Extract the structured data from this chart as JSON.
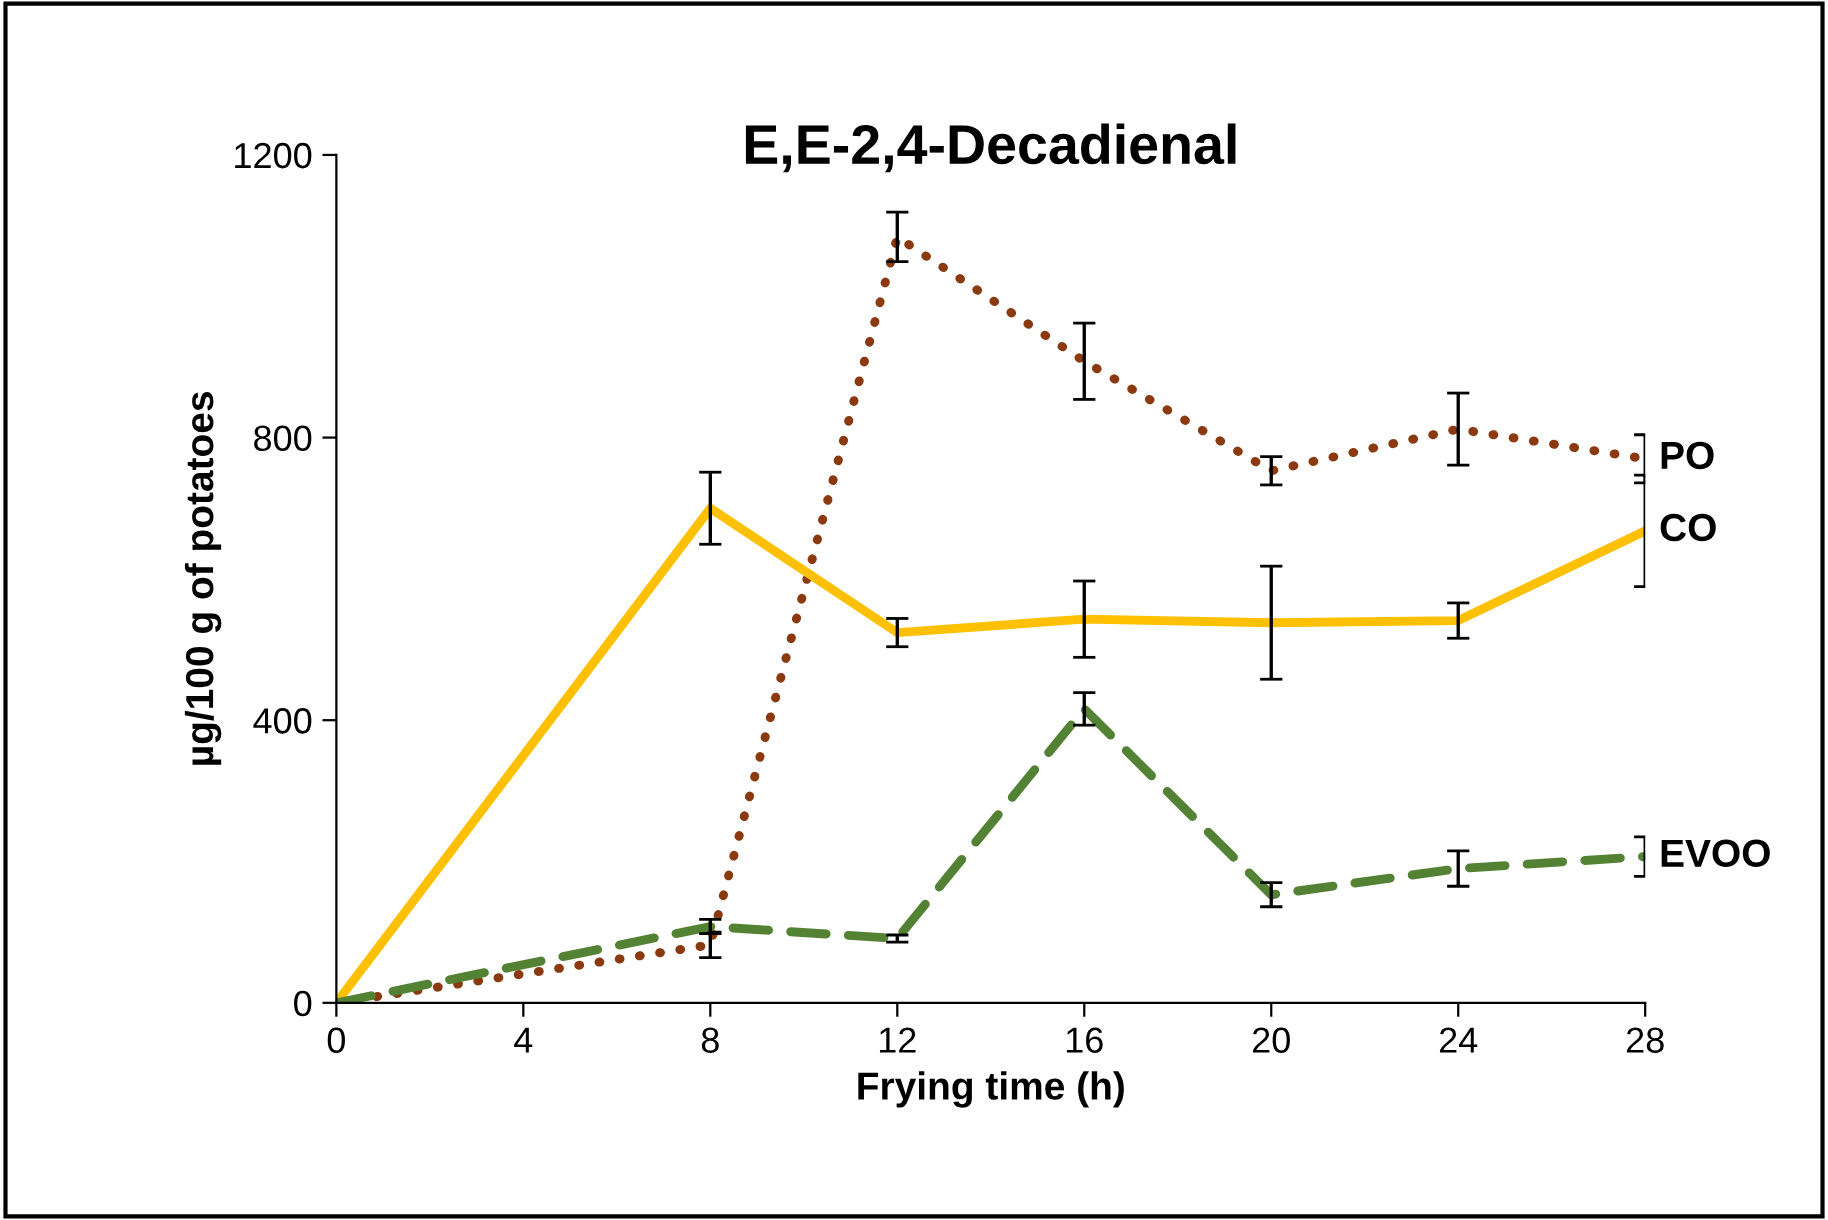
{
  "chart_data": {
    "type": "line",
    "title": "E,E-2,4-Decadienal",
    "xlabel": "Frying time (h)",
    "ylabel": "µg/100 g of potatoes",
    "x": [
      0,
      8,
      12,
      16,
      20,
      24,
      28
    ],
    "series": [
      {
        "name": "PO",
        "color": "#8b3a0f",
        "line_style": "dotted",
        "values": [
          0,
          82,
          1084,
          908,
          753,
          812,
          770
        ],
        "errors": [
          null,
          18,
          35,
          54,
          20,
          51,
          34
        ]
      },
      {
        "name": "CO",
        "color": "#ffc000",
        "line_style": "solid",
        "values": [
          0,
          700,
          524,
          543,
          538,
          541,
          668
        ],
        "errors": [
          null,
          51,
          20,
          54,
          80,
          25,
          79
        ]
      },
      {
        "name": "EVOO",
        "color": "#548235",
        "line_style": "dashed",
        "values": [
          0,
          108,
          91,
          416,
          153,
          190,
          207
        ],
        "errors": [
          null,
          10,
          5,
          23,
          17,
          25,
          28
        ]
      }
    ],
    "xlim": [
      0,
      28
    ],
    "xticks": [
      0,
      4,
      8,
      12,
      16,
      20,
      24,
      28
    ],
    "ylim": [
      0,
      1200
    ],
    "yticks": [
      0,
      400,
      800,
      1200
    ],
    "grid": false,
    "legend": false,
    "marker": "none"
  }
}
